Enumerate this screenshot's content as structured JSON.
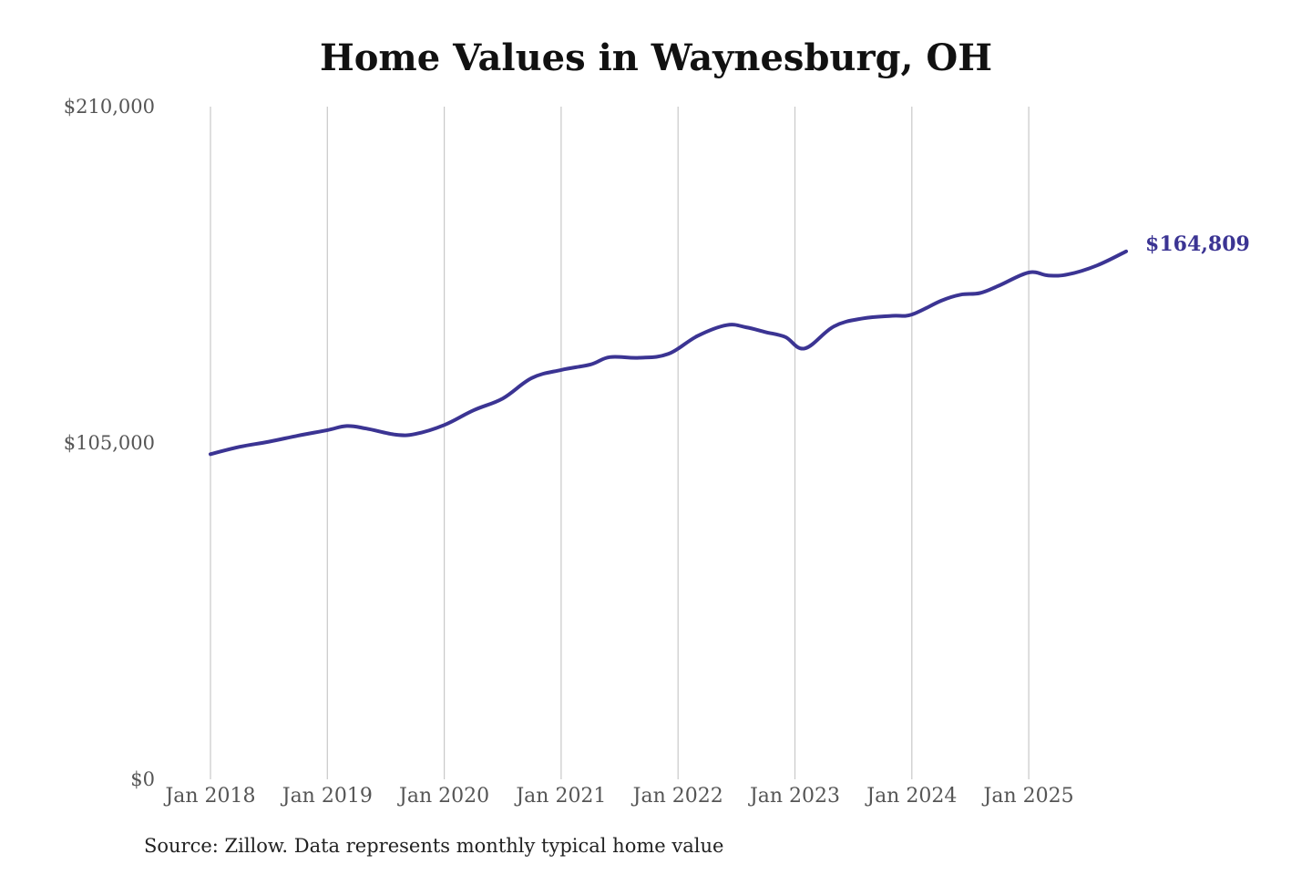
{
  "chart_data": {
    "type": "line",
    "title": "Home Values in Waynesburg, OH",
    "source": "Source: Zillow. Data represents monthly typical home value",
    "xlabel": "",
    "ylabel": "",
    "ylim": [
      0,
      210000
    ],
    "y_ticks": [
      {
        "value": 0,
        "label": "$0"
      },
      {
        "value": 105000,
        "label": "$105,000"
      },
      {
        "value": 210000,
        "label": "$210,000"
      }
    ],
    "x_ticks": [
      {
        "date": "2018-01",
        "label": "Jan 2018"
      },
      {
        "date": "2019-01",
        "label": "Jan 2019"
      },
      {
        "date": "2020-01",
        "label": "Jan 2020"
      },
      {
        "date": "2021-01",
        "label": "Jan 2021"
      },
      {
        "date": "2022-01",
        "label": "Jan 2022"
      },
      {
        "date": "2023-01",
        "label": "Jan 2023"
      },
      {
        "date": "2024-01",
        "label": "Jan 2024"
      },
      {
        "date": "2025-01",
        "label": "Jan 2025"
      }
    ],
    "grid": {
      "vertical": true,
      "horizontal": false
    },
    "line_color": "#3b3493",
    "grid_color": "#c8c8c8",
    "end_label": "$164,809",
    "series": [
      {
        "x": [
          "2018-01",
          "2018-04",
          "2018-07",
          "2018-10",
          "2019-01",
          "2019-03",
          "2019-05",
          "2019-08",
          "2019-10",
          "2020-01",
          "2020-04",
          "2020-07",
          "2020-10",
          "2021-01",
          "2021-04",
          "2021-06",
          "2021-09",
          "2021-12",
          "2022-03",
          "2022-06",
          "2022-08",
          "2022-10",
          "2022-12",
          "2023-02",
          "2023-05",
          "2023-08",
          "2023-11",
          "2024-01",
          "2024-04",
          "2024-06",
          "2024-08",
          "2024-10",
          "2025-01",
          "2025-03",
          "2025-05",
          "2025-08",
          "2025-11"
        ],
        "values": [
          101500,
          103800,
          105400,
          107300,
          109000,
          110300,
          109500,
          107600,
          107800,
          110600,
          115200,
          118900,
          125300,
          127800,
          129500,
          131800,
          131600,
          132800,
          138400,
          141800,
          141100,
          139600,
          138100,
          134500,
          141400,
          143900,
          144700,
          145100,
          149400,
          151300,
          151800,
          154200,
          158200,
          157300,
          157600,
          160400,
          164809
        ]
      }
    ]
  }
}
